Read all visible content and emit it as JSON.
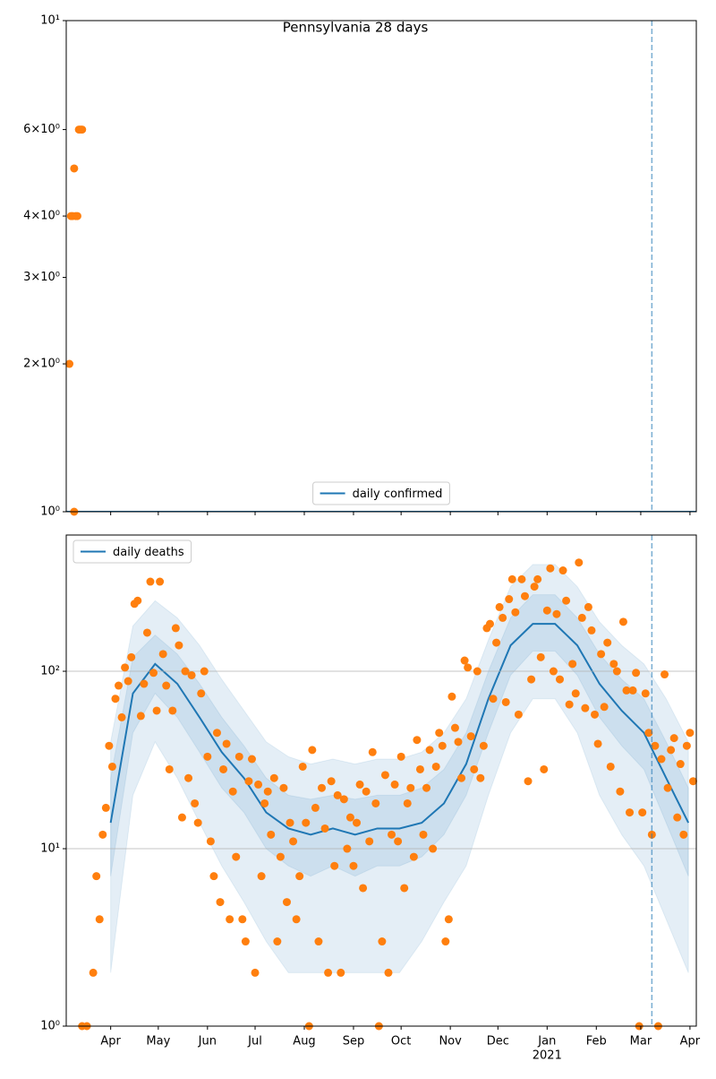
{
  "chart_data": [
    {
      "type": "line",
      "title": "Pennsylvania 28 days",
      "log_scale": true,
      "xlim": [
        0,
        397
      ],
      "ylim": [
        1,
        10
      ],
      "yticks": [
        {
          "value": 1,
          "label": "10⁰"
        },
        {
          "value": 2,
          "label": "2×10⁰"
        },
        {
          "value": 3,
          "label": "3×10⁰"
        },
        {
          "value": 4,
          "label": "4×10⁰"
        },
        {
          "value": 6,
          "label": "6×10⁰"
        },
        {
          "value": 10,
          "label": "10¹"
        }
      ],
      "grid": false,
      "legend": "lower center",
      "vline": 369,
      "series": [
        {
          "name": "daily confirmed",
          "color": "#1f77b4",
          "x": [
            0,
            397
          ],
          "values": [
            1,
            1
          ]
        }
      ],
      "points": {
        "color": "#ff7f0e",
        "x": [
          2,
          3,
          4,
          5,
          5,
          6,
          7,
          8,
          9,
          10
        ],
        "values": [
          2,
          4,
          4,
          1,
          5,
          4,
          4,
          6,
          6,
          6
        ]
      }
    },
    {
      "type": "line",
      "log_scale": true,
      "xlim": [
        0,
        397
      ],
      "ylim": [
        1,
        586
      ],
      "xticks": [
        {
          "value": 28,
          "label": "Apr"
        },
        {
          "value": 58,
          "label": "May"
        },
        {
          "value": 89,
          "label": "Jun"
        },
        {
          "value": 119,
          "label": "Jul"
        },
        {
          "value": 150,
          "label": "Aug"
        },
        {
          "value": 181,
          "label": "Sep"
        },
        {
          "value": 211,
          "label": "Oct"
        },
        {
          "value": 242,
          "label": "Nov"
        },
        {
          "value": 272,
          "label": "Dec"
        },
        {
          "value": 303,
          "label": "Jan"
        },
        {
          "value": 334,
          "label": "Feb"
        },
        {
          "value": 362,
          "label": "Mar"
        },
        {
          "value": 393,
          "label": "Apr"
        }
      ],
      "x_year_label": {
        "value": 303,
        "label": "2021"
      },
      "yticks": [
        {
          "value": 1,
          "label": "10⁰"
        },
        {
          "value": 10,
          "label": "10¹"
        },
        {
          "value": 100,
          "label": "10²"
        }
      ],
      "grid": true,
      "legend": "upper left",
      "vline": 369,
      "series": [
        {
          "name": "daily deaths",
          "color": "#1f77b4",
          "x": [
            0,
            14,
            28,
            42,
            56,
            70,
            84,
            98,
            112,
            126,
            140,
            154,
            168,
            182,
            196,
            210,
            224,
            238,
            252,
            266,
            280,
            294,
            308,
            322,
            336,
            350,
            364,
            378,
            392
          ],
          "values": [
            null,
            null,
            14,
            75,
            110,
            85,
            55,
            35,
            25,
            16,
            13,
            12,
            13,
            12,
            13,
            13,
            14,
            18,
            30,
            70,
            140,
            185,
            185,
            140,
            85,
            60,
            45,
            25,
            14
          ],
          "inner_low": [
            null,
            null,
            7,
            45,
            75,
            55,
            35,
            22,
            16,
            10,
            8,
            7,
            8,
            7,
            8,
            8,
            9,
            12,
            20,
            45,
            95,
            130,
            130,
            95,
            55,
            38,
            28,
            14,
            7
          ],
          "inner_high": [
            null,
            null,
            25,
            120,
            160,
            125,
            85,
            55,
            38,
            25,
            20,
            19,
            20,
            19,
            20,
            20,
            22,
            28,
            45,
            100,
            200,
            270,
            270,
            200,
            125,
            90,
            70,
            40,
            22
          ],
          "outer_low": [
            null,
            null,
            2,
            20,
            40,
            25,
            14,
            8,
            5,
            3,
            2,
            2,
            2,
            2,
            2,
            2,
            3,
            5,
            8,
            20,
            45,
            70,
            70,
            45,
            20,
            12,
            8,
            4,
            2
          ],
          "outer_high": [
            null,
            null,
            40,
            180,
            250,
            200,
            140,
            90,
            60,
            40,
            33,
            30,
            32,
            30,
            32,
            32,
            35,
            45,
            70,
            150,
            300,
            400,
            400,
            300,
            190,
            140,
            110,
            70,
            40
          ]
        }
      ],
      "points": {
        "color": "#ff7f0e",
        "x": [
          10,
          13,
          17,
          19,
          21,
          23,
          25,
          27,
          29,
          31,
          33,
          35,
          37,
          39,
          41,
          43,
          45,
          47,
          49,
          51,
          53,
          55,
          57,
          59,
          61,
          63,
          65,
          67,
          69,
          71,
          73,
          75,
          77,
          79,
          81,
          83,
          85,
          87,
          89,
          91,
          93,
          95,
          97,
          99,
          101,
          103,
          105,
          107,
          109,
          111,
          113,
          115,
          117,
          119,
          121,
          123,
          125,
          127,
          129,
          131,
          133,
          135,
          137,
          139,
          141,
          143,
          145,
          147,
          149,
          151,
          153,
          155,
          157,
          159,
          161,
          163,
          165,
          167,
          169,
          171,
          173,
          175,
          177,
          179,
          181,
          183,
          185,
          187,
          189,
          191,
          193,
          195,
          197,
          199,
          201,
          203,
          205,
          207,
          209,
          211,
          213,
          215,
          217,
          219,
          221,
          223,
          225,
          227,
          229,
          231,
          233,
          235,
          237,
          239,
          241,
          243,
          245,
          247,
          249,
          251,
          253,
          255,
          257,
          259,
          261,
          263,
          265,
          267,
          269,
          271,
          273,
          275,
          277,
          279,
          281,
          283,
          285,
          287,
          289,
          291,
          293,
          295,
          297,
          299,
          301,
          303,
          305,
          307,
          309,
          311,
          313,
          315,
          317,
          319,
          321,
          323,
          325,
          327,
          329,
          331,
          333,
          335,
          337,
          339,
          341,
          343,
          345,
          347,
          349,
          351,
          353,
          355,
          357,
          359,
          361,
          363,
          365,
          367,
          369,
          371,
          373,
          375,
          377,
          379,
          381,
          383,
          385,
          387,
          389,
          391,
          393,
          395
        ],
        "values": [
          1,
          1,
          2,
          7,
          4,
          12,
          17,
          38,
          29,
          70,
          83,
          55,
          105,
          88,
          120,
          240,
          250,
          56,
          85,
          165,
          320,
          98,
          60,
          320,
          125,
          83,
          28,
          60,
          175,
          140,
          15,
          100,
          25,
          95,
          18,
          14,
          75,
          100,
          33,
          11,
          7,
          45,
          5,
          28,
          39,
          4,
          21,
          9,
          33,
          4,
          3,
          24,
          32,
          2,
          23,
          7,
          18,
          21,
          12,
          25,
          3,
          9,
          22,
          5,
          14,
          11,
          4,
          7,
          29,
          14,
          1,
          36,
          17,
          3,
          22,
          13,
          2,
          24,
          8,
          20,
          2,
          19,
          10,
          15,
          8,
          14,
          23,
          6,
          21,
          11,
          35,
          18,
          1,
          3,
          26,
          2,
          12,
          23,
          11,
          33,
          6,
          18,
          22,
          9,
          41,
          28,
          12,
          22,
          36,
          10,
          29,
          45,
          38,
          3,
          4,
          72,
          48,
          40,
          25,
          115,
          105,
          43,
          28,
          100,
          25,
          38,
          175,
          185,
          70,
          145,
          230,
          200,
          67,
          255,
          330,
          215,
          57,
          330,
          265,
          24,
          90,
          300,
          330,
          120,
          28,
          220,
          380,
          100,
          210,
          90,
          370,
          250,
          65,
          110,
          75,
          410,
          200,
          62,
          230,
          170,
          57,
          39,
          125,
          63,
          145,
          29,
          110,
          100,
          21,
          190,
          78,
          16,
          78,
          98,
          1,
          16,
          75,
          45,
          12,
          38,
          1,
          32,
          96,
          22,
          36,
          42,
          15,
          30,
          12,
          38,
          45,
          24
        ]
      }
    }
  ]
}
